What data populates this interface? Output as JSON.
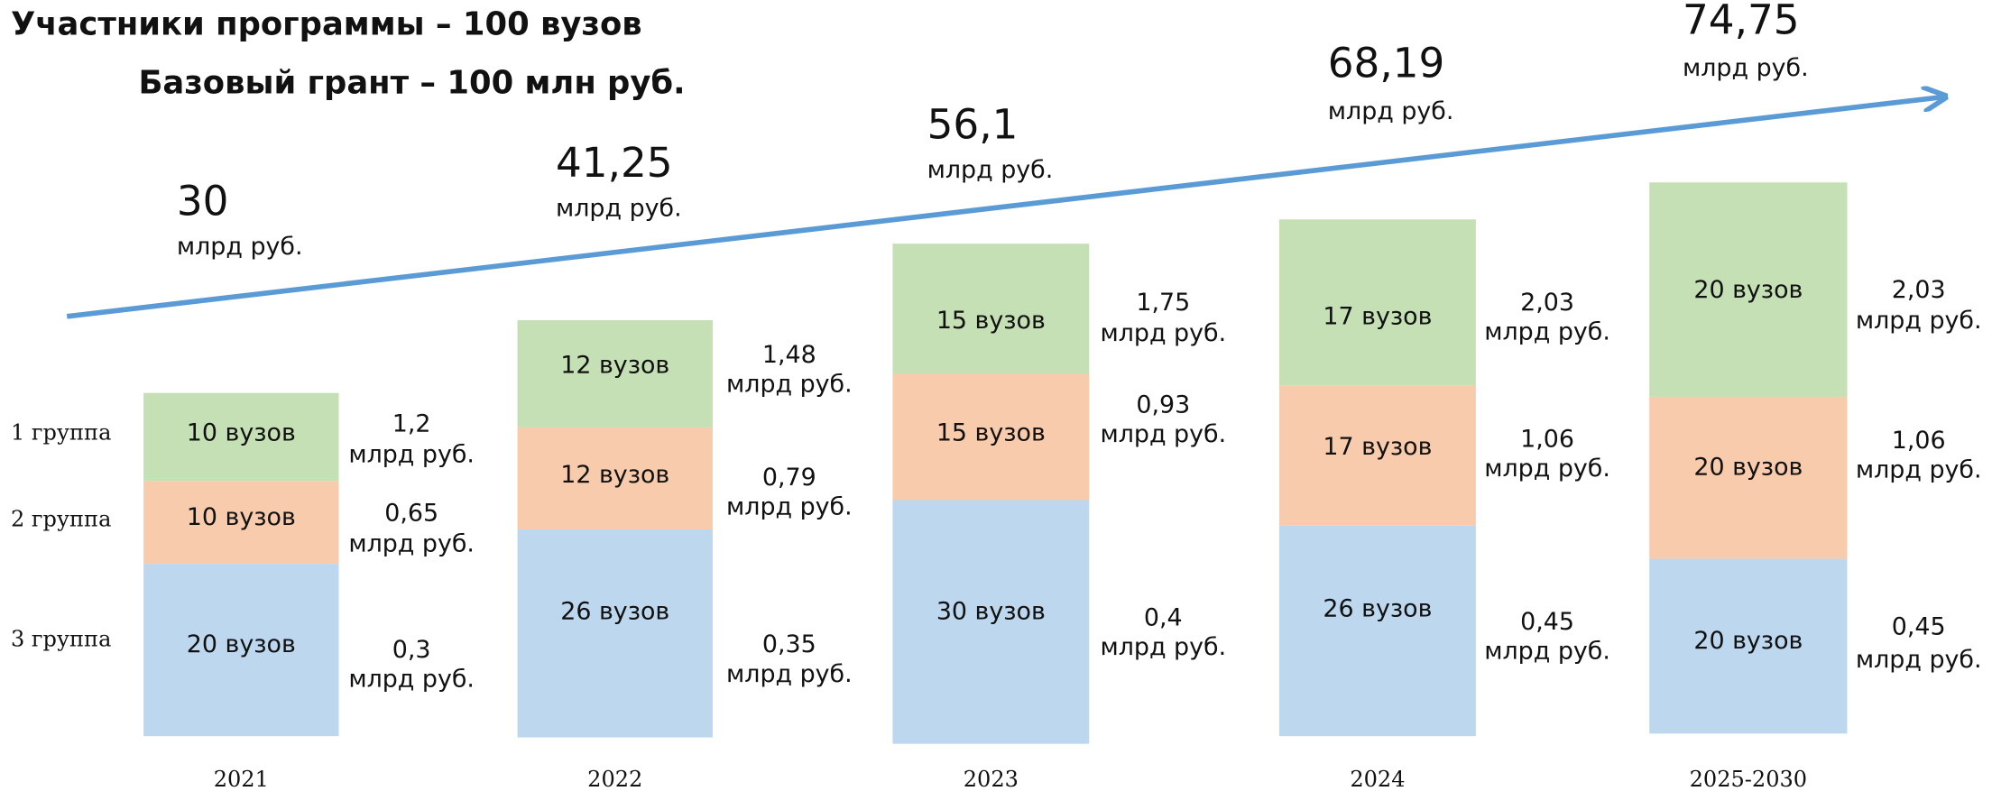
{
  "header": {
    "title": "Участники программы – 100 вузов",
    "subtitle": "Базовый грант – 100 млн руб."
  },
  "unit": "млрд руб.",
  "group_labels": [
    "1 группа",
    "2 группа",
    "3 группа"
  ],
  "years": [
    {
      "label": "2021",
      "total": "30",
      "segments": [
        {
          "count": "10 вузов",
          "amount": "1,2"
        },
        {
          "count": "10 вузов",
          "amount": "0,65"
        },
        {
          "count": "20 вузов",
          "amount": "0,3"
        }
      ]
    },
    {
      "label": "2022",
      "total": "41,25",
      "segments": [
        {
          "count": "12 вузов",
          "amount": "1,48"
        },
        {
          "count": "12 вузов",
          "amount": "0,79"
        },
        {
          "count": "26 вузов",
          "amount": "0,35"
        }
      ]
    },
    {
      "label": "2023",
      "total": "56,1",
      "segments": [
        {
          "count": "15 вузов",
          "amount": "1,75"
        },
        {
          "count": "15 вузов",
          "amount": "0,93"
        },
        {
          "count": "30 вузов",
          "amount": "0,4"
        }
      ]
    },
    {
      "label": "2024",
      "total": "68,19",
      "segments": [
        {
          "count": "17 вузов",
          "amount": "2,03"
        },
        {
          "count": "17 вузов",
          "amount": "1,06"
        },
        {
          "count": "26 вузов",
          "amount": "0,45"
        }
      ]
    },
    {
      "label": "2025-2030",
      "total": "74,75",
      "segments": [
        {
          "count": "20 вузов",
          "amount": "2,03"
        },
        {
          "count": "20 вузов",
          "amount": "1,06"
        },
        {
          "count": "20 вузов",
          "amount": "0,45"
        }
      ]
    }
  ]
}
